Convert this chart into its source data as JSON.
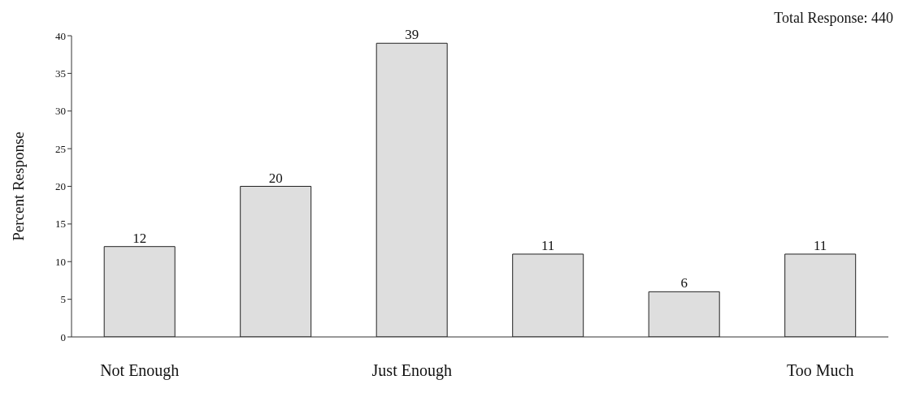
{
  "chart_data": {
    "type": "bar",
    "categories": [
      "Not Enough",
      null,
      "Just Enough",
      null,
      null,
      "Too Much"
    ],
    "values": [
      12,
      20,
      39,
      11,
      6,
      11
    ],
    "color": "#dedede",
    "ylabel": "Percent Response",
    "ylim": [
      0,
      40
    ],
    "yticks": [
      0,
      5,
      10,
      15,
      20,
      25,
      30,
      35,
      40
    ],
    "grid": false,
    "data_labels": true,
    "annotations": [
      "Total Response: 440"
    ]
  }
}
